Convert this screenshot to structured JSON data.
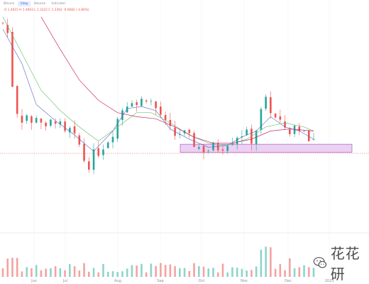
{
  "toolbar": {
    "tabs": [
      {
        "label": "Bitcoin",
        "active": false
      },
      {
        "label": "1day",
        "active": true
      },
      {
        "label": "Volume",
        "active": false
      },
      {
        "label": "Indicator",
        "active": false
      }
    ]
  },
  "ohlc_text": "O 1.4615  H 1.4663  L 1.3322  C 1.3362  -0.0682 (-4.86%)",
  "watermark": {
    "text": "花花研"
  },
  "colors": {
    "up": "#26a69a",
    "down": "#ef5350",
    "ma_blue": "#5c6bc0",
    "ma_green": "#66bb6a",
    "ma_purple": "#c2185b",
    "support_zone_fill": "#e7c9f0",
    "support_zone_border": "#b25bc7",
    "price_line": "#ef5350"
  },
  "chart_data": {
    "type": "candlestick",
    "x_axis_labels": [
      "Jun",
      "Jul",
      "Aug",
      "Sep",
      "Oct",
      "Nov",
      "Dec",
      "2023"
    ],
    "close_path": [
      [
        0,
        1.75
      ],
      [
        2,
        1.7
      ],
      [
        4,
        1.45
      ],
      [
        6,
        1.32
      ],
      [
        8,
        1.28
      ],
      [
        10,
        1.3
      ],
      [
        12,
        1.25
      ],
      [
        14,
        1.3
      ],
      [
        16,
        1.27
      ],
      [
        18,
        1.22
      ],
      [
        20,
        1.26
      ],
      [
        22,
        1.28
      ],
      [
        24,
        1.24
      ],
      [
        26,
        1.2
      ],
      [
        28,
        1.22
      ],
      [
        30,
        1.18
      ],
      [
        32,
        1.15
      ],
      [
        34,
        1.08
      ],
      [
        36,
        1.06
      ],
      [
        38,
        1.1
      ],
      [
        40,
        1.12
      ],
      [
        42,
        1.15
      ],
      [
        44,
        1.18
      ],
      [
        46,
        1.22
      ],
      [
        48,
        1.28
      ],
      [
        50,
        1.33
      ],
      [
        52,
        1.36
      ],
      [
        54,
        1.38
      ],
      [
        56,
        1.35
      ],
      [
        58,
        1.37
      ],
      [
        60,
        1.39
      ],
      [
        62,
        1.36
      ],
      [
        64,
        1.33
      ],
      [
        66,
        1.3
      ],
      [
        68,
        1.25
      ],
      [
        70,
        1.22
      ],
      [
        72,
        1.2
      ],
      [
        74,
        1.21
      ],
      [
        76,
        1.2
      ],
      [
        78,
        1.18
      ],
      [
        80,
        1.16
      ],
      [
        82,
        1.14
      ],
      [
        84,
        1.13
      ],
      [
        86,
        1.13
      ],
      [
        88,
        1.14
      ],
      [
        90,
        1.14
      ],
      [
        92,
        1.15
      ],
      [
        94,
        1.17
      ],
      [
        96,
        1.18
      ],
      [
        98,
        1.2
      ],
      [
        100,
        1.21
      ],
      [
        102,
        1.2
      ],
      [
        104,
        1.18
      ],
      [
        106,
        1.23
      ],
      [
        108,
        1.31
      ],
      [
        110,
        1.36
      ],
      [
        112,
        1.33
      ],
      [
        114,
        1.28
      ],
      [
        116,
        1.25
      ],
      [
        118,
        1.24
      ],
      [
        120,
        1.22
      ],
      [
        122,
        1.24
      ],
      [
        124,
        1.23
      ],
      [
        126,
        1.21
      ],
      [
        128,
        1.2
      ],
      [
        130,
        1.17
      ]
    ],
    "support_zone": {
      "low": 1.115,
      "high": 1.155
    },
    "moving_averages": [
      {
        "points": [
          [
            0,
            1.72
          ],
          [
            8,
            1.55
          ],
          [
            14,
            1.35
          ],
          [
            22,
            1.27
          ],
          [
            30,
            1.2
          ],
          [
            38,
            1.12
          ],
          [
            46,
            1.22
          ],
          [
            52,
            1.33
          ],
          [
            58,
            1.34
          ],
          [
            64,
            1.32
          ],
          [
            70,
            1.23
          ],
          [
            78,
            1.18
          ],
          [
            86,
            1.14
          ],
          [
            94,
            1.15
          ],
          [
            100,
            1.19
          ],
          [
            106,
            1.22
          ],
          [
            112,
            1.29
          ],
          [
            118,
            1.24
          ],
          [
            124,
            1.22
          ],
          [
            130,
            1.18
          ]
        ]
      },
      {
        "points": [
          [
            0,
            1.78
          ],
          [
            8,
            1.6
          ],
          [
            16,
            1.42
          ],
          [
            24,
            1.32
          ],
          [
            32,
            1.24
          ],
          [
            40,
            1.17
          ],
          [
            48,
            1.24
          ],
          [
            56,
            1.31
          ],
          [
            62,
            1.31
          ],
          [
            70,
            1.26
          ],
          [
            78,
            1.2
          ],
          [
            86,
            1.16
          ],
          [
            94,
            1.15
          ],
          [
            102,
            1.18
          ],
          [
            110,
            1.24
          ],
          [
            118,
            1.26
          ],
          [
            126,
            1.24
          ],
          [
            130,
            1.22
          ]
        ]
      },
      {
        "points": [
          [
            16,
            1.78
          ],
          [
            24,
            1.62
          ],
          [
            32,
            1.47
          ],
          [
            40,
            1.37
          ],
          [
            48,
            1.31
          ],
          [
            56,
            1.29
          ],
          [
            64,
            1.28
          ],
          [
            72,
            1.24
          ],
          [
            80,
            1.19
          ],
          [
            88,
            1.16
          ],
          [
            96,
            1.16
          ],
          [
            104,
            1.18
          ],
          [
            112,
            1.22
          ],
          [
            120,
            1.23
          ],
          [
            130,
            1.22
          ]
        ]
      }
    ]
  }
}
